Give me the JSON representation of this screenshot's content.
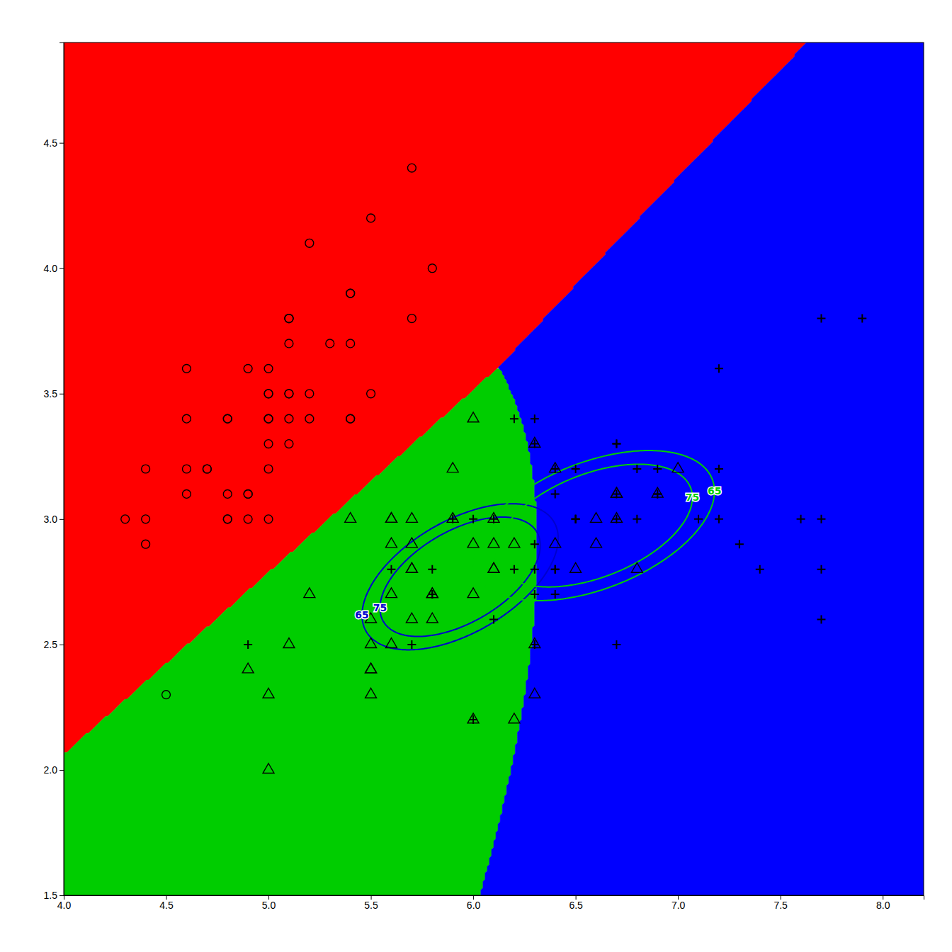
{
  "chart_data": {
    "type": "scatter",
    "xlim": [
      4.0,
      8.2
    ],
    "ylim": [
      1.5,
      4.9
    ],
    "xticks": [
      {
        "value": 4,
        "label": "4.0"
      },
      4.5,
      {
        "value": 5,
        "label": "5.0"
      },
      5.5,
      {
        "value": 6,
        "label": "6.0"
      },
      6.5,
      {
        "value": 7,
        "label": "7.0"
      },
      7.5,
      {
        "value": 8,
        "label": "8.0"
      }
    ],
    "yticks": [
      1.5,
      {
        "value": 2,
        "label": "2.0"
      },
      2.5,
      {
        "value": 3,
        "label": "3.0"
      },
      3.5,
      {
        "value": 4,
        "label": "4.0"
      },
      4.5
    ],
    "grid": false,
    "reg_param": 0.5,
    "series": [
      {
        "color": "#ff0000",
        "marker": "circle",
        "x": [
          5.1,
          4.9,
          4.7,
          4.6,
          5.0,
          5.4,
          4.6,
          5.0,
          4.4,
          4.9,
          5.4,
          4.8,
          4.8,
          4.3,
          5.8,
          5.7,
          5.4,
          5.1,
          5.7,
          5.1,
          5.4,
          5.1,
          4.6,
          5.1,
          4.8,
          5.0,
          5.0,
          5.2,
          5.2,
          4.7,
          4.8,
          5.4,
          5.2,
          5.5,
          4.9,
          5.0,
          5.5,
          4.9,
          4.4,
          5.1,
          5.0,
          4.5,
          4.4,
          5.0,
          5.1,
          4.8,
          5.1,
          4.6,
          5.3,
          5.0
        ],
        "values": [
          3.5,
          3.0,
          3.2,
          3.1,
          3.6,
          3.9,
          3.4,
          3.4,
          2.9,
          3.1,
          3.7,
          3.4,
          3.0,
          3.0,
          4.0,
          4.4,
          3.9,
          3.5,
          3.8,
          3.8,
          3.4,
          3.7,
          3.6,
          3.3,
          3.4,
          3.0,
          3.4,
          3.5,
          3.4,
          3.2,
          3.1,
          3.4,
          4.1,
          4.2,
          3.1,
          3.2,
          3.5,
          3.6,
          3.0,
          3.4,
          3.5,
          2.3,
          3.2,
          3.5,
          3.8,
          3.0,
          3.8,
          3.2,
          3.7,
          3.3
        ]
      },
      {
        "color": "#00cd00",
        "marker": "triangle",
        "x": [
          7.0,
          6.4,
          6.9,
          5.5,
          6.5,
          5.7,
          6.3,
          4.9,
          6.6,
          5.2,
          5.0,
          5.9,
          6.0,
          6.1,
          5.6,
          6.7,
          5.6,
          5.8,
          6.2,
          5.6,
          5.9,
          6.1,
          6.3,
          6.1,
          6.4,
          6.6,
          6.8,
          6.7,
          6.0,
          5.7,
          5.5,
          5.5,
          5.8,
          6.0,
          5.4,
          6.0,
          6.7,
          6.3,
          5.6,
          5.5,
          5.5,
          6.1,
          5.8,
          5.0,
          5.6,
          5.7,
          5.7,
          6.2,
          5.1,
          5.7
        ],
        "values": [
          3.2,
          3.2,
          3.1,
          2.3,
          2.8,
          2.8,
          3.3,
          2.4,
          2.9,
          2.7,
          2.0,
          3.0,
          2.2,
          2.9,
          2.9,
          3.1,
          3.0,
          2.7,
          2.2,
          2.5,
          3.2,
          2.8,
          2.5,
          2.8,
          2.9,
          3.0,
          2.8,
          3.0,
          2.9,
          2.6,
          2.4,
          2.4,
          2.7,
          2.7,
          3.0,
          3.4,
          3.1,
          2.3,
          3.0,
          2.5,
          2.6,
          3.0,
          2.6,
          2.3,
          2.7,
          3.0,
          2.9,
          2.9,
          2.5,
          2.8
        ],
        "contours": {
          "color": "#0000cd",
          "levels": [
            0.65,
            0.75
          ],
          "labels": [
            "65",
            "75"
          ]
        }
      },
      {
        "color": "#0000ff",
        "marker": "plus",
        "x": [
          6.3,
          5.8,
          7.1,
          6.3,
          6.5,
          7.6,
          4.9,
          7.3,
          6.7,
          7.2,
          6.5,
          6.4,
          6.8,
          5.7,
          5.8,
          6.4,
          6.5,
          7.7,
          7.7,
          6.0,
          6.9,
          5.6,
          7.7,
          6.3,
          6.7,
          7.2,
          6.2,
          6.1,
          6.4,
          7.2,
          7.4,
          7.9,
          6.4,
          6.3,
          6.1,
          7.7,
          6.3,
          6.4,
          6.0,
          6.9,
          6.7,
          6.9,
          5.8,
          6.8,
          6.7,
          6.7,
          6.3,
          6.5,
          6.2,
          5.9
        ],
        "values": [
          3.3,
          2.7,
          3.0,
          2.9,
          3.0,
          3.0,
          2.5,
          2.9,
          2.5,
          3.6,
          3.2,
          2.7,
          3.0,
          2.5,
          2.8,
          3.2,
          3.0,
          3.8,
          2.6,
          2.2,
          3.2,
          2.8,
          2.8,
          2.7,
          3.3,
          3.2,
          2.8,
          3.0,
          2.8,
          3.0,
          2.8,
          3.8,
          2.8,
          2.8,
          2.6,
          3.0,
          3.4,
          3.1,
          3.0,
          3.1,
          3.1,
          3.1,
          2.7,
          3.2,
          3.3,
          3.0,
          2.5,
          3.0,
          3.4,
          3.0
        ],
        "contours": {
          "color": "#00cd00",
          "levels": [
            0.65,
            0.75
          ],
          "labels": [
            "65",
            "75"
          ]
        }
      }
    ]
  }
}
